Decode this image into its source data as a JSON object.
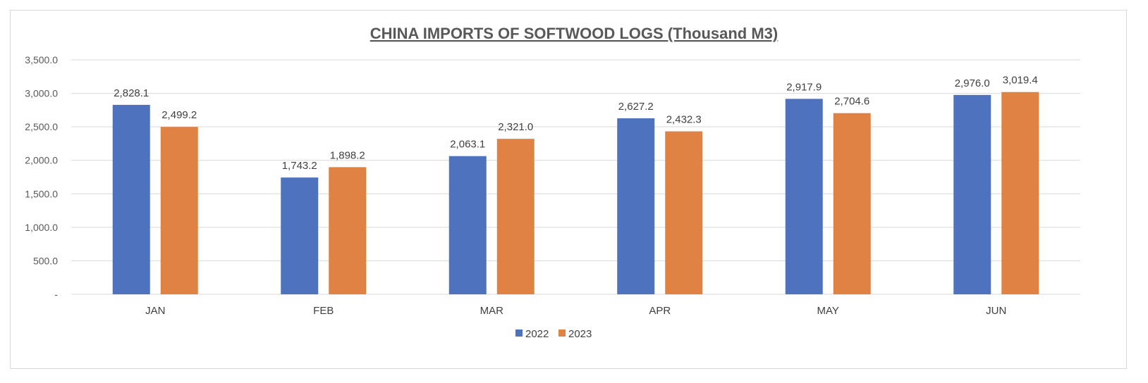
{
  "chart_data": {
    "type": "bar",
    "title": "CHINA IMPORTS OF SOFTWOOD LOGS (Thousand M3)",
    "xlabel": "",
    "ylabel": "",
    "categories": [
      "JAN",
      "FEB",
      "MAR",
      "APR",
      "MAY",
      "JUN"
    ],
    "series": [
      {
        "name": "2022",
        "color": "#4e72be",
        "values": [
          2828.1,
          1743.2,
          2063.1,
          2627.2,
          2917.9,
          2976.0
        ],
        "labels": [
          "2,828.1",
          "1,743.2",
          "2,063.1",
          "2,627.2",
          "2,917.9",
          "2,976.0"
        ]
      },
      {
        "name": "2023",
        "color": "#df8244",
        "values": [
          2499.2,
          1898.2,
          2321.0,
          2432.3,
          2704.6,
          3019.4
        ],
        "labels": [
          "2,499.2",
          "1,898.2",
          "2,321.0",
          "2,432.3",
          "2,704.6",
          "3,019.4"
        ]
      }
    ],
    "ylim": [
      0,
      3500
    ],
    "yticks": [
      0,
      500,
      1000,
      1500,
      2000,
      2500,
      3000,
      3500
    ],
    "ytick_labels": [
      "-",
      "500.0",
      "1,000.0",
      "1,500.0",
      "2,000.0",
      "2,500.0",
      "3,000.0",
      "3,500.0"
    ],
    "grid": true,
    "legend": "bottom-center",
    "gridline_color": "#d9d9d9"
  }
}
